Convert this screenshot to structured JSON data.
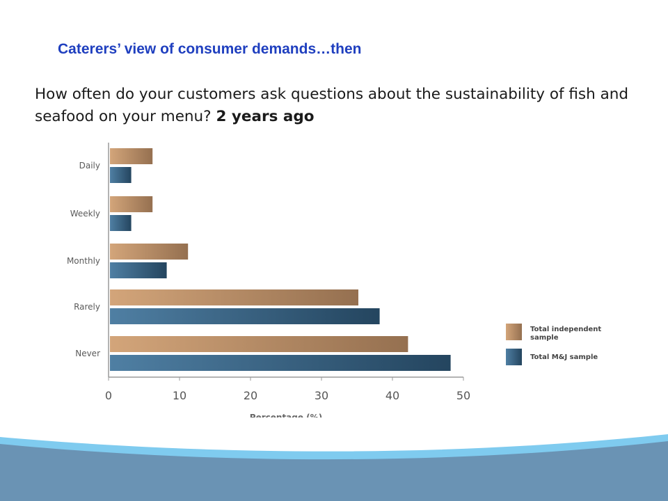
{
  "slide": {
    "title": "Caterers’ view of consumer demands…then",
    "question_text": "How often do your customers ask questions about the sustainability of fish and seafood on your menu?",
    "question_emphasis": "2 years ago"
  },
  "chart_data": {
    "type": "bar",
    "orientation": "horizontal",
    "categories": [
      "Daily",
      "Weekly",
      "Monthly",
      "Rarely",
      "Never"
    ],
    "series": [
      {
        "name": "Total independent sample",
        "values": [
          6,
          6,
          11,
          35,
          42
        ],
        "color": "#c49a6c"
      },
      {
        "name": "Total M&J sample",
        "values": [
          3,
          3,
          8,
          38,
          48
        ],
        "color": "#3e6b8c"
      }
    ],
    "xlabel": "Percentage (%)",
    "xlim": [
      0,
      50
    ],
    "xticks": [
      0,
      10,
      20,
      30,
      40,
      50
    ],
    "legend_labels": [
      [
        "Total independent",
        "sample"
      ],
      [
        "Total M&J sample"
      ]
    ],
    "grid": false,
    "legend_position": "right"
  },
  "colors": {
    "title": "#1f3fbf",
    "bar_independent_light": "#d3a57a",
    "bar_independent_dark": "#957050",
    "bar_mj_light": "#4f7fa3",
    "bar_mj_dark": "#24455f",
    "wave_blue": "#6a93b4",
    "wave_light": "#7fcbef"
  }
}
